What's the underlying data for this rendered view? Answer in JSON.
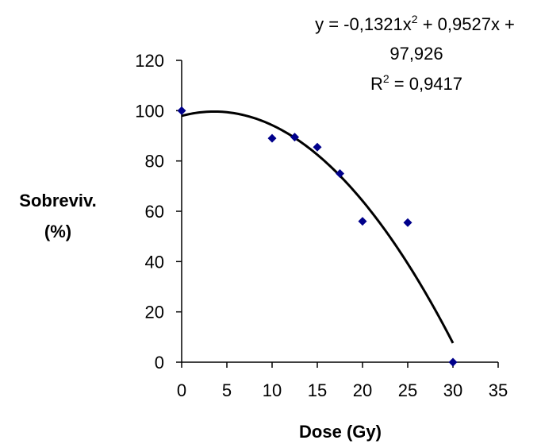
{
  "chart_data": {
    "type": "scatter",
    "xlabel": "Dose (Gy)",
    "ylabel_lines": [
      "Sobreviv.",
      "(%)"
    ],
    "xlim": [
      0,
      35
    ],
    "ylim": [
      0,
      120
    ],
    "x_ticks": [
      0,
      5,
      10,
      15,
      20,
      25,
      30,
      35
    ],
    "y_ticks": [
      0,
      20,
      40,
      60,
      80,
      100,
      120
    ],
    "grid": false,
    "points": [
      {
        "x": 0,
        "y": 100
      },
      {
        "x": 10,
        "y": 89
      },
      {
        "x": 12.5,
        "y": 89.5
      },
      {
        "x": 15,
        "y": 85.5
      },
      {
        "x": 17.5,
        "y": 75
      },
      {
        "x": 20,
        "y": 56
      },
      {
        "x": 25,
        "y": 55.5
      },
      {
        "x": 30,
        "y": 0
      }
    ],
    "marker_color": "#00008B",
    "trendline": {
      "type": "polynomial",
      "coefficients": [
        -0.1321,
        0.9527,
        97.926
      ],
      "x_range": [
        0,
        30
      ],
      "color": "#000000"
    },
    "annotation": {
      "equation_line1_main": "y = -0,1321x",
      "equation_line1_sup": "2",
      "equation_line1_rest": " + 0,9527x +",
      "equation_line2": "97,926",
      "r2_main": "R",
      "r2_sup": "2",
      "r2_rest": " = 0,9417"
    }
  }
}
